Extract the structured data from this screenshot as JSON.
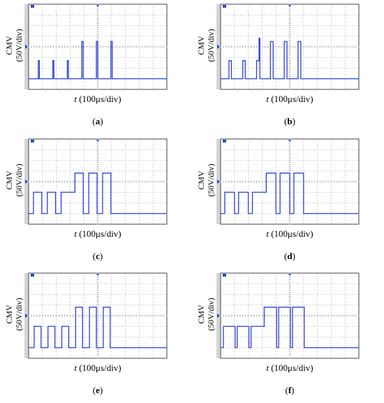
{
  "panel_order": [
    "a",
    "b",
    "c",
    "d",
    "e",
    "f"
  ],
  "colors": {
    "trace": "#2b3fd6",
    "grid": "#9a9a9a",
    "frame": "#444444",
    "marker": "#1f4fc9",
    "side_bar": "#d4d4d4"
  },
  "ylabel_line1": "CMV",
  "ylabel_line2": "(50V/div)",
  "xlabel_var": "t",
  "xlabel_unit": " (100μs/div)",
  "chart_data": [
    {
      "type": "line",
      "panel": "a",
      "tag_open": "(",
      "tag_letter": "a",
      "tag_close": ")",
      "xlim": [
        0,
        10
      ],
      "ylim": [
        -4,
        4
      ],
      "baseline": -3.0,
      "pulses": [
        {
          "start": 0.7,
          "end": 0.78,
          "level": -1.3
        },
        {
          "start": 1.75,
          "end": 1.83,
          "level": -1.3
        },
        {
          "start": 2.8,
          "end": 2.88,
          "level": -1.3
        },
        {
          "start": 3.85,
          "end": 3.95,
          "level": 0.5
        },
        {
          "start": 4.9,
          "end": 5.0,
          "level": 0.5
        },
        {
          "start": 5.95,
          "end": 6.05,
          "level": 0.5
        }
      ]
    },
    {
      "type": "line",
      "panel": "b",
      "tag_open": "(",
      "tag_letter": "b",
      "tag_close": ")",
      "xlim": [
        0,
        10
      ],
      "ylim": [
        -4,
        4
      ],
      "baseline": -3.0,
      "pulses": [
        {
          "start": 0.6,
          "end": 0.78,
          "level": -1.3
        },
        {
          "start": 1.6,
          "end": 1.78,
          "level": -1.3
        },
        {
          "start": 2.6,
          "end": 2.78,
          "level": -1.3
        },
        {
          "start": 2.78,
          "end": 2.84,
          "level": 0.8
        },
        {
          "start": 3.6,
          "end": 3.8,
          "level": 0.5
        },
        {
          "start": 4.6,
          "end": 4.8,
          "level": 0.5
        },
        {
          "start": 5.6,
          "end": 5.8,
          "level": 0.5
        }
      ]
    },
    {
      "type": "line",
      "panel": "c",
      "tag_open": "(",
      "tag_letter": "c",
      "tag_close": ")",
      "xlim": [
        0,
        10
      ],
      "ylim": [
        -4,
        4
      ],
      "baseline": -3.0,
      "pulses": [
        {
          "start": 0.35,
          "end": 0.95,
          "level": -1.0
        },
        {
          "start": 1.35,
          "end": 1.95,
          "level": -1.0
        },
        {
          "start": 2.35,
          "end": 2.95,
          "level": -1.0
        },
        {
          "start": 3.35,
          "end": 3.95,
          "level": 0.8
        },
        {
          "start": 4.35,
          "end": 4.95,
          "level": 0.8
        },
        {
          "start": 5.35,
          "end": 5.95,
          "level": 0.8
        }
      ],
      "mid_step": {
        "start": 2.95,
        "end": 3.35,
        "level": -1.0
      }
    },
    {
      "type": "line",
      "panel": "d",
      "tag_open": "(",
      "tag_letter": "d",
      "tag_close": ")",
      "xlim": [
        0,
        10
      ],
      "ylim": [
        -4,
        4
      ],
      "baseline": -3.0,
      "pulses": [
        {
          "start": 0.3,
          "end": 1.0,
          "level": -1.0
        },
        {
          "start": 1.3,
          "end": 2.0,
          "level": -1.0
        },
        {
          "start": 2.3,
          "end": 3.0,
          "level": -1.0
        },
        {
          "start": 3.3,
          "end": 4.0,
          "level": 0.8
        },
        {
          "start": 4.3,
          "end": 5.0,
          "level": 0.8
        },
        {
          "start": 5.3,
          "end": 6.0,
          "level": 0.8
        }
      ],
      "mid_step": {
        "start": 3.0,
        "end": 3.3,
        "level": -1.0
      }
    },
    {
      "type": "line",
      "panel": "e",
      "tag_open": "(",
      "tag_letter": "e",
      "tag_close": ")",
      "xlim": [
        0,
        10
      ],
      "ylim": [
        -4,
        4
      ],
      "baseline": -3.0,
      "pulses": [
        {
          "start": 0.4,
          "end": 0.9,
          "level": -1.0
        },
        {
          "start": 1.4,
          "end": 1.9,
          "level": -1.0
        },
        {
          "start": 2.4,
          "end": 2.9,
          "level": -1.0
        },
        {
          "start": 3.4,
          "end": 3.9,
          "level": 0.8
        },
        {
          "start": 4.4,
          "end": 4.9,
          "level": 0.8
        },
        {
          "start": 5.4,
          "end": 5.9,
          "level": 0.8
        }
      ]
    },
    {
      "type": "line",
      "panel": "f",
      "tag_open": "(",
      "tag_letter": "f",
      "tag_close": ")",
      "xlim": [
        0,
        10
      ],
      "ylim": [
        -4,
        4
      ],
      "baseline": -3.0,
      "pulses": [
        {
          "start": 0.2,
          "end": 1.05,
          "level": -1.0
        },
        {
          "start": 1.2,
          "end": 2.05,
          "level": -1.0
        },
        {
          "start": 2.2,
          "end": 3.05,
          "level": -1.0
        },
        {
          "start": 3.2,
          "end": 4.05,
          "level": 0.8
        },
        {
          "start": 4.2,
          "end": 5.05,
          "level": 0.8
        },
        {
          "start": 5.2,
          "end": 6.05,
          "level": 0.8
        }
      ],
      "mid_step": {
        "start": 3.05,
        "end": 3.2,
        "level": -1.0
      },
      "step_up": {
        "start": 3.15,
        "end": 3.2,
        "level": 0.8
      }
    }
  ]
}
